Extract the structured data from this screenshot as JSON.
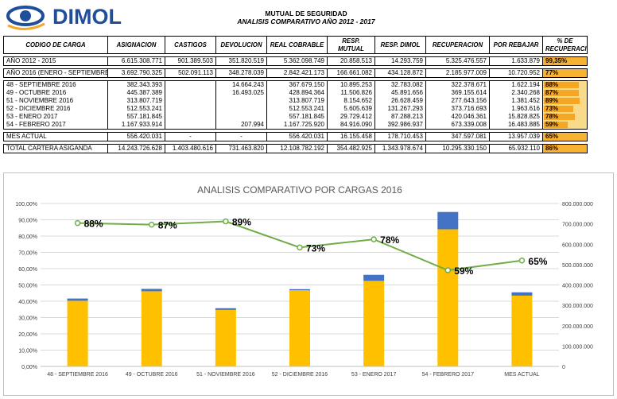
{
  "logo": {
    "brand": "DIMOL",
    "colors": {
      "eye": "#1f4e9a",
      "text": "#1f4e9a",
      "accent": "#f5a623"
    }
  },
  "header": {
    "title": "MUTUAL DE SEGURIDAD",
    "subtitle": "ANALISIS COMPARATIVO AÑO 2012 - 2017"
  },
  "table": {
    "columns": [
      "CODIGO DE CARGA",
      "ASIGNACION",
      "CASTIGOS",
      "DEVOLUCION",
      "REAL COBRABLE",
      "RESP. MUTUAL",
      "RESP. DIMOL",
      "RECUPERACION",
      "POR REBAJAR",
      "% DE RECUPERACION"
    ],
    "groups": [
      {
        "rows": [
          {
            "label": "AÑO 2012 - 2015",
            "cells": [
              "6.615.308.771",
              "901.389.503",
              "351.820.519",
              "5.362.098.749",
              "20.858.513",
              "14.293.759",
              "5.325.476.557",
              "1.633.879"
            ],
            "pct": "99,35%",
            "frac": 0.9935,
            "hi": true
          }
        ]
      },
      {
        "rows": [
          {
            "label": "AÑO 2016 (ENERO - SEPTIEMBRE",
            "cells": [
              "3.692.790.325",
              "502.091.113",
              "348.278.039",
              "2.842.421.173",
              "166.661.082",
              "434.128.872",
              "2.185.977.009",
              "10.720.952"
            ],
            "pct": "77%",
            "frac": 0.77,
            "hi": true
          }
        ]
      },
      {
        "rows": [
          {
            "label": "48 - SEPTIEMBRE 2016",
            "cells": [
              "382.343.393",
              "",
              "14.664.243",
              "367.679.150",
              "10.895.253",
              "32.783.082",
              "322.378.671",
              "1.622.194"
            ],
            "pct": "88%",
            "frac": 0.88,
            "hi": false
          },
          {
            "label": "49 - OCTUBRE 2016",
            "cells": [
              "445.387.389",
              "",
              "16.493.025",
              "428.894.364",
              "11.506.826",
              "45.891.656",
              "369.155.614",
              "2.340.268"
            ],
            "pct": "87%",
            "frac": 0.87,
            "hi": false
          },
          {
            "label": "51 - NOVIEMBRE 2016",
            "cells": [
              "313.807.719",
              "",
              "",
              "313.807.719",
              "8.154.652",
              "26.628.459",
              "277.643.156",
              "1.381.452"
            ],
            "pct": "89%",
            "frac": 0.89,
            "hi": false
          },
          {
            "label": "52 - DICIEMBRE 2016",
            "cells": [
              "512.553.241",
              "",
              "",
              "512.553.241",
              "5.605.639",
              "131.267.293",
              "373.716.693",
              "1.963.616"
            ],
            "pct": "73%",
            "frac": 0.73,
            "hi": false
          },
          {
            "label": "53 - ENERO 2017",
            "cells": [
              "557.181.845",
              "",
              "",
              "557.181.845",
              "29.729.412",
              "87.288.213",
              "420.046.361",
              "15.828.825"
            ],
            "pct": "78%",
            "frac": 0.78,
            "hi": false
          },
          {
            "label": "54 - FEBRERO 2017",
            "cells": [
              "1.167.933.914",
              "",
              "207.994",
              "1.167.725.920",
              "84.916.090",
              "392.986.937",
              "673.339.008",
              "16.483.885"
            ],
            "pct": "59%",
            "frac": 0.59,
            "hi": false
          }
        ]
      },
      {
        "rows": [
          {
            "label": "MES ACTUAL",
            "cells": [
              "556.420.031",
              "-",
              "-",
              "556.420.031",
              "16.155.458",
              "178.710.453",
              "347.597.081",
              "13.957.039"
            ],
            "pct": "65%",
            "frac": 0.65,
            "hi": true
          }
        ]
      },
      {
        "rows": [
          {
            "label": "TOTAL CARTERA ASIGANDA",
            "cells": [
              "14.243.726.628",
              "1.403.480.616",
              "731.463.820",
              "12.108.782.192",
              "354.482.925",
              "1.343.978.674",
              "10.295.330.150",
              "65.932.110"
            ],
            "pct": "86%",
            "frac": 0.86,
            "hi": true
          }
        ]
      }
    ]
  },
  "chart_data": {
    "type": "bar",
    "title": "ANALISIS COMPARATIVO POR CARGAS 2016",
    "categories": [
      "48 - SEPTIEMBRE 2016",
      "49 - OCTUBRE 2016",
      "51 - NOVIEMBRE 2016",
      "52 - DICIEMBRE 2016",
      "53 - ENERO 2017",
      "54 - FEBRERO 2017",
      "MES ACTUAL"
    ],
    "bar_series": [
      {
        "values": [
          322378671,
          369155614,
          277643156,
          373716693,
          420046361,
          673339008,
          347597081
        ],
        "color": "#ffc000"
      },
      {
        "values": [
          10895253,
          11506826,
          8154652,
          5605639,
          29729412,
          84916090,
          16155458
        ],
        "color": "#4472c4"
      }
    ],
    "line_series": {
      "values": [
        88,
        87,
        89,
        73,
        78,
        59,
        65
      ],
      "labels": [
        "88%",
        "87%",
        "89%",
        "73%",
        "78%",
        "59%",
        "65%"
      ],
      "color": "#70ad47"
    },
    "y_left": {
      "min": 0,
      "max": 100,
      "step": 10,
      "ticks": [
        "0,00%",
        "10,00%",
        "20,00%",
        "30,00%",
        "40,00%",
        "50,00%",
        "60,00%",
        "70,00%",
        "80,00%",
        "90,00%",
        "100,00%"
      ]
    },
    "y_right": {
      "min": 0,
      "max": 800000000,
      "step": 100000000,
      "ticks": [
        "0",
        "100.000.000",
        "200.000.000",
        "300.000.000",
        "400.000.000",
        "500.000.000",
        "600.000.000",
        "700.000.000",
        "800.000.000"
      ]
    },
    "grid": true
  }
}
